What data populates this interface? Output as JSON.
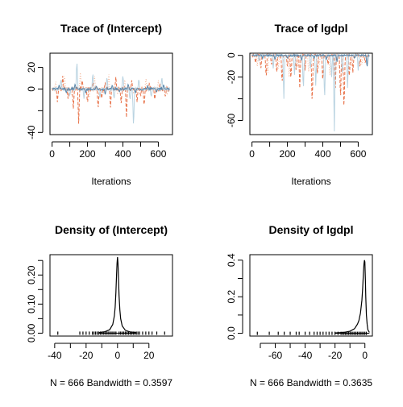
{
  "chart_data": [
    {
      "type": "line",
      "title": "Trace of (Intercept)",
      "xlabel": "Iterations",
      "ylabel": "",
      "xlim": [
        -12,
        680
      ],
      "ylim": [
        -42,
        33
      ],
      "x_ticks": [
        0,
        200,
        400,
        600
      ],
      "x_minor_ticks": [
        100,
        300,
        500
      ],
      "y_ticks": [
        -40,
        0,
        20
      ],
      "y_minor_ticks": [
        -20
      ],
      "n_iterations": 666,
      "series": [
        {
          "color": "#e8734a",
          "dash": "dashed",
          "baseline": 0,
          "spikes": [
            [
              30,
              -12
            ],
            [
              60,
              12
            ],
            [
              90,
              -9
            ],
            [
              120,
              -18
            ],
            [
              150,
              -32
            ],
            [
              170,
              9
            ],
            [
              200,
              -14
            ],
            [
              230,
              7
            ],
            [
              260,
              -20
            ],
            [
              280,
              -10
            ],
            [
              300,
              6
            ],
            [
              330,
              -17
            ],
            [
              360,
              11
            ],
            [
              390,
              -13
            ],
            [
              420,
              -26
            ],
            [
              450,
              8
            ],
            [
              480,
              -12
            ],
            [
              500,
              -7
            ],
            [
              520,
              -17
            ],
            [
              550,
              6
            ],
            [
              580,
              -11
            ],
            [
              610,
              5
            ],
            [
              640,
              -8
            ]
          ]
        },
        {
          "color": "#f3b79b",
          "dash": "dotted",
          "baseline": 0,
          "spikes": [
            [
              20,
              8
            ],
            [
              70,
              14
            ],
            [
              110,
              -6
            ],
            [
              160,
              18
            ],
            [
              210,
              -8
            ],
            [
              240,
              12
            ],
            [
              290,
              -5
            ],
            [
              320,
              16
            ],
            [
              370,
              -6
            ],
            [
              410,
              10
            ],
            [
              460,
              -4
            ],
            [
              530,
              11
            ],
            [
              600,
              8
            ],
            [
              650,
              -5
            ]
          ]
        },
        {
          "color": "#b9d3e1",
          "dash": "solid",
          "baseline": 0,
          "spikes": [
            [
              50,
              10
            ],
            [
              100,
              -7
            ],
            [
              140,
              28
            ],
            [
              180,
              -9
            ],
            [
              230,
              16
            ],
            [
              270,
              -8
            ],
            [
              310,
              12
            ],
            [
              350,
              -10
            ],
            [
              400,
              14
            ],
            [
              440,
              -11
            ],
            [
              460,
              -38
            ],
            [
              490,
              10
            ],
            [
              560,
              -8
            ],
            [
              620,
              12
            ]
          ]
        },
        {
          "color": "#5b87aa",
          "dash": "solid",
          "baseline": 0,
          "spikes": [
            [
              40,
              4
            ],
            [
              80,
              -4
            ],
            [
              130,
              5
            ],
            [
              190,
              -4
            ],
            [
              250,
              3
            ],
            [
              300,
              -5
            ],
            [
              340,
              4
            ],
            [
              380,
              -3
            ],
            [
              430,
              5
            ],
            [
              470,
              -4
            ],
            [
              540,
              3
            ],
            [
              590,
              -3
            ],
            [
              630,
              4
            ]
          ]
        }
      ]
    },
    {
      "type": "line",
      "title": "Trace of lgdpl",
      "xlabel": "Iterations",
      "ylabel": "",
      "xlim": [
        -12,
        680
      ],
      "ylim": [
        -73,
        2
      ],
      "x_ticks": [
        0,
        200,
        400,
        600
      ],
      "x_minor_ticks": [
        100,
        300,
        500
      ],
      "y_ticks": [
        -60,
        -20,
        0
      ],
      "y_minor_ticks": [
        -40
      ],
      "n_iterations": 666,
      "series": [
        {
          "color": "#e8734a",
          "dash": "dashed",
          "baseline": 0,
          "spikes": [
            [
              20,
              -8
            ],
            [
              50,
              -14
            ],
            [
              80,
              -22
            ],
            [
              110,
              -10
            ],
            [
              140,
              -18
            ],
            [
              170,
              -28
            ],
            [
              200,
              -12
            ],
            [
              220,
              -24
            ],
            [
              250,
              -16
            ],
            [
              270,
              -30
            ],
            [
              300,
              -14
            ],
            [
              340,
              -48
            ],
            [
              370,
              -20
            ],
            [
              400,
              -26
            ],
            [
              430,
              -10
            ],
            [
              470,
              -36
            ],
            [
              500,
              -44
            ],
            [
              520,
              -55
            ],
            [
              550,
              -22
            ],
            [
              570,
              -16
            ],
            [
              610,
              -12
            ],
            [
              640,
              -8
            ]
          ]
        },
        {
          "color": "#f3b79b",
          "dash": "dotted",
          "baseline": 0,
          "spikes": [
            [
              30,
              -10
            ],
            [
              90,
              -16
            ],
            [
              150,
              -12
            ],
            [
              210,
              -20
            ],
            [
              260,
              -12
            ],
            [
              320,
              -18
            ],
            [
              380,
              -10
            ],
            [
              440,
              -22
            ],
            [
              490,
              -14
            ],
            [
              560,
              -12
            ],
            [
              620,
              -10
            ]
          ]
        },
        {
          "color": "#b9d3e1",
          "dash": "solid",
          "baseline": 0,
          "spikes": [
            [
              40,
              -6
            ],
            [
              120,
              -12
            ],
            [
              180,
              -40
            ],
            [
              240,
              -18
            ],
            [
              290,
              -34
            ],
            [
              330,
              -12
            ],
            [
              360,
              -28
            ],
            [
              410,
              -44
            ],
            [
              450,
              -20
            ],
            [
              465,
              -70
            ],
            [
              510,
              -16
            ],
            [
              540,
              -30
            ],
            [
              600,
              -14
            ],
            [
              650,
              -10
            ]
          ]
        },
        {
          "color": "#5b87aa",
          "dash": "solid",
          "baseline": 0,
          "spikes": [
            [
              60,
              -3
            ],
            [
              130,
              -4
            ],
            [
              200,
              -3
            ],
            [
              280,
              -5
            ],
            [
              350,
              -3
            ],
            [
              420,
              -4
            ],
            [
              480,
              -6
            ],
            [
              580,
              -3
            ],
            [
              650,
              -12
            ]
          ]
        }
      ]
    },
    {
      "type": "line",
      "title": "Density of (Intercept)",
      "xlabel": "N = 666   Bandwidth = 0.3597",
      "ylabel": "",
      "xlim": [
        -43,
        35
      ],
      "ylim": [
        -0.01,
        0.27
      ],
      "x_ticks": [
        -40,
        -20,
        0,
        20
      ],
      "x_minor_ticks": [
        -30,
        -10,
        10
      ],
      "y_ticks": [
        0.0,
        0.1,
        0.2
      ],
      "y_minor_ticks": [
        0.05,
        0.15,
        0.25
      ],
      "y_tick_labels": [
        "0.00",
        "0.10",
        "0.20"
      ],
      "density": {
        "x": [
          -12,
          -8,
          -5,
          -3,
          -2,
          -1.5,
          -1,
          -0.6,
          -0.3,
          0,
          0.3,
          0.6,
          1,
          1.5,
          2,
          3,
          5,
          8,
          12
        ],
        "y": [
          0.002,
          0.005,
          0.012,
          0.03,
          0.06,
          0.09,
          0.14,
          0.2,
          0.24,
          0.262,
          0.24,
          0.19,
          0.13,
          0.08,
          0.05,
          0.025,
          0.01,
          0.004,
          0.002
        ]
      },
      "rug": [
        -38,
        -24,
        -22,
        -20,
        -18,
        -16,
        -15,
        -14,
        -13,
        -12,
        -11,
        -10,
        -9,
        -8,
        -7,
        -6,
        -5,
        -4,
        -3,
        -2,
        -1,
        1,
        2,
        3,
        4,
        5,
        6,
        7,
        8,
        9,
        10,
        11,
        12,
        13,
        14,
        16,
        18,
        20,
        22,
        25,
        30
      ]
    },
    {
      "type": "line",
      "title": "Density of lgdpl",
      "xlabel": "N = 666   Bandwidth = 0.3635",
      "ylabel": "",
      "xlim": [
        -77,
        5
      ],
      "ylim": [
        -0.015,
        0.43
      ],
      "x_ticks": [
        -60,
        -40,
        -20,
        0
      ],
      "x_minor_ticks": [
        -70,
        -50,
        -30,
        -10
      ],
      "y_ticks": [
        0.0,
        0.2,
        0.4
      ],
      "y_minor_ticks": [
        0.1,
        0.3
      ],
      "y_tick_labels": [
        "0.0",
        "0.2",
        "0.4"
      ],
      "density": {
        "x": [
          -20,
          -14,
          -10,
          -7,
          -5,
          -4,
          -3,
          -2,
          -1.5,
          -1,
          -0.6,
          -0.3,
          0,
          0.3,
          0.6,
          1,
          1.5,
          2,
          3
        ],
        "y": [
          0.002,
          0.005,
          0.012,
          0.025,
          0.05,
          0.07,
          0.11,
          0.18,
          0.25,
          0.33,
          0.38,
          0.4,
          0.39,
          0.3,
          0.2,
          0.1,
          0.05,
          0.02,
          0.005
        ]
      },
      "rug": [
        -72,
        -64,
        -58,
        -54,
        -50,
        -46,
        -44,
        -40,
        -37,
        -34,
        -32,
        -30,
        -28,
        -26,
        -24,
        -22,
        -20,
        -18,
        -16,
        -15,
        -14,
        -13,
        -12,
        -11,
        -10,
        -9,
        -8,
        -7,
        -6,
        -5,
        -4,
        -3,
        -2,
        -1,
        0,
        1
      ]
    }
  ]
}
